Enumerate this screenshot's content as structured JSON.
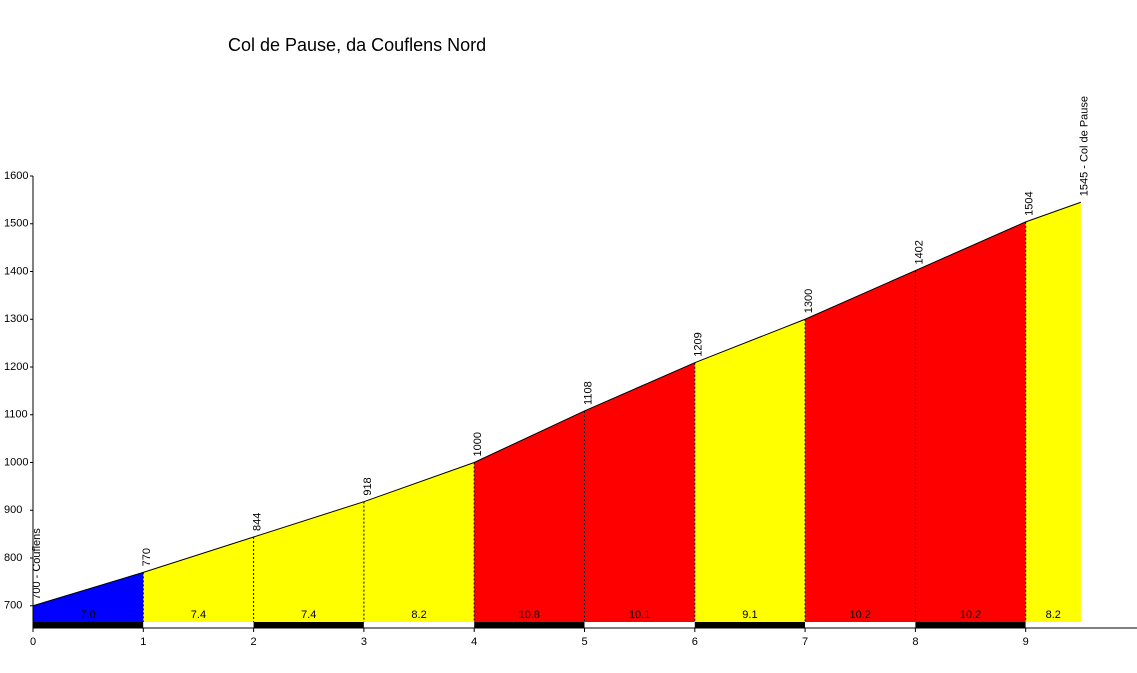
{
  "chart_data": {
    "type": "profile",
    "title": "Col de Pause, da Couflens Nord",
    "x": [
      0,
      1,
      2,
      3,
      4,
      5,
      6,
      7,
      8,
      9,
      9.5
    ],
    "values": [
      700,
      770,
      844,
      918,
      1000,
      1108,
      1209,
      1300,
      1402,
      1504,
      1545
    ],
    "value_labels": [
      "700 - Couflens",
      "770",
      "844",
      "918",
      "1000",
      "1108",
      "1209",
      "1300",
      "1402",
      "1504",
      "1545 - Col de Pause"
    ],
    "segments": {
      "values": [
        7.0,
        7.4,
        7.4,
        8.2,
        10.8,
        10.1,
        9.1,
        10.2,
        10.2,
        8.2
      ],
      "value_labels": [
        "7.0",
        "7.4",
        "7.4",
        "8.2",
        "10.8",
        "10.1",
        "9.1",
        "10.2",
        "10.2",
        "8.2"
      ],
      "colors": [
        "#0000ff",
        "#ffff00",
        "#ffff00",
        "#ffff00",
        "#ff0000",
        "#ff0000",
        "#ffff00",
        "#ff0000",
        "#ff0000",
        "#ffff00"
      ]
    },
    "xlim": [
      0,
      10
    ],
    "xticks": [
      0,
      1,
      2,
      3,
      4,
      5,
      6,
      7,
      8,
      9
    ],
    "ylim": [
      666,
      1600
    ],
    "yticks": [
      700,
      800,
      900,
      1000,
      1100,
      1200,
      1300,
      1400,
      1500,
      1600
    ]
  }
}
